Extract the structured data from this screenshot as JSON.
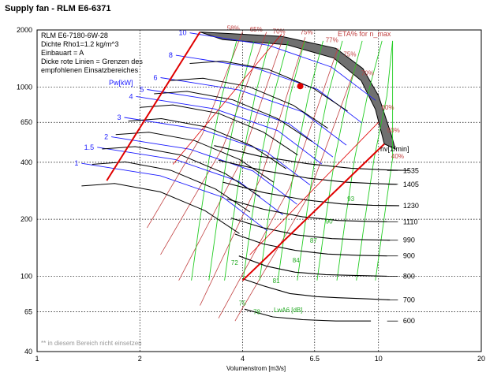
{
  "window": {
    "title": "Supply fan - RLM E6-6371"
  },
  "colors": {
    "fan_curve": "#000000",
    "power_curve": "#1a1aff",
    "efficiency_curve": "#c04040",
    "noise_curve": "#22cc22",
    "limit_line": "#e00000",
    "grid": "#000000",
    "envelope_fill": "#707070",
    "operating_point": "#e00000"
  },
  "chart_data": {
    "type": "line",
    "title": "",
    "xlabel": "Volumenstrom [m3/s]",
    "ylabel": "",
    "x_scale": "log",
    "y_scale": "log",
    "xlim": [
      1,
      20
    ],
    "ylim": [
      40,
      2000
    ],
    "x_ticks": [
      1,
      2,
      4,
      6.5,
      10,
      20
    ],
    "y_ticks": [
      40,
      65,
      100,
      200,
      400,
      650,
      1000,
      2000
    ],
    "grid": true,
    "info_lines": [
      "RLM E6-7180-6W-28",
      "Dichte Rho1=1.2 kg/m^3",
      "Einbauart = A",
      " Dicke rote Linien = Grenzen des",
      " empfohlenen Einsatzbereiches"
    ],
    "footnote": "** in diesem Bereich nicht einsetzen",
    "speed_axis_label": "nv[1/min]",
    "efficiency_axis_label": "ETA% for n_max",
    "power_axis_label": "Pw[kW]",
    "noise_axis_label": "LwA6 [dB]",
    "fan_curves": [
      {
        "rpm": "600",
        "points": [
          [
            4.05,
            67
          ],
          [
            4.9,
            61
          ],
          [
            6.0,
            59
          ],
          [
            7.5,
            58
          ],
          [
            9.5,
            58
          ]
        ]
      },
      {
        "rpm": "700",
        "points": [
          [
            4.0,
            97
          ],
          [
            4.6,
            89
          ],
          [
            5.5,
            81
          ],
          [
            6.6,
            78
          ],
          [
            7.6,
            77
          ],
          [
            9.2,
            76
          ],
          [
            10.8,
            75
          ]
        ]
      },
      {
        "rpm": "800",
        "points": [
          [
            3.9,
            128
          ],
          [
            4.7,
            113
          ],
          [
            5.7,
            105
          ],
          [
            7.0,
            102
          ],
          [
            8.5,
            101
          ],
          [
            10.6,
            100
          ]
        ]
      },
      {
        "rpm": "900",
        "points": [
          [
            3.8,
            167
          ],
          [
            4.6,
            148
          ],
          [
            5.7,
            137
          ],
          [
            7.1,
            131
          ],
          [
            8.7,
            129
          ],
          [
            10.6,
            128
          ]
        ]
      },
      {
        "rpm": "990",
        "points": [
          [
            3.7,
            203
          ],
          [
            4.6,
            180
          ],
          [
            5.8,
            165
          ],
          [
            7.3,
            158
          ],
          [
            9.0,
            156
          ],
          [
            10.8,
            155
          ]
        ]
      },
      {
        "rpm": "1110",
        "points": [
          [
            3.6,
            256
          ],
          [
            4.6,
            226
          ],
          [
            6.0,
            206
          ],
          [
            7.6,
            197
          ],
          [
            9.2,
            195
          ],
          [
            10.6,
            194
          ]
        ]
      },
      {
        "rpm": "1230",
        "points": [
          [
            3.5,
            314
          ],
          [
            4.6,
            277
          ],
          [
            6.1,
            253
          ],
          [
            7.8,
            241
          ],
          [
            9.6,
            237
          ],
          [
            11.5,
            236
          ]
        ]
      },
      {
        "rpm": "1405",
        "points": [
          [
            3.4,
            410
          ],
          [
            4.6,
            362
          ],
          [
            6.2,
            330
          ],
          [
            8.0,
            314
          ],
          [
            10.0,
            308
          ],
          [
            11.3,
            306
          ]
        ]
      },
      {
        "rpm": "1535",
        "points": [
          [
            3.3,
            490
          ],
          [
            4.5,
            430
          ],
          [
            6.2,
            393
          ],
          [
            8.3,
            372
          ],
          [
            10.4,
            365
          ],
          [
            12.3,
            362
          ]
        ]
      }
    ],
    "speed_labels": [
      "1535",
      "1405",
      "1230",
      "1110",
      "990",
      "900",
      "800",
      "700",
      "600"
    ],
    "power_labels": [
      "10",
      "8",
      "6",
      "5",
      "4",
      "3",
      "2",
      "1.5",
      "1"
    ],
    "efficiency_labels": [
      "58%",
      "65%",
      "70%",
      "75%",
      "77%",
      "75%",
      "70%",
      "60%",
      "50%",
      "40%"
    ],
    "noise_labels": [
      "72",
      "75",
      "78",
      "81",
      "84",
      "87",
      "90",
      "93"
    ],
    "operating_point": {
      "x": 5.9,
      "y": 1010
    },
    "limit_lines": [
      {
        "points": [
          [
            1.6,
            320
          ],
          [
            3.0,
            1950
          ]
        ]
      },
      {
        "points": [
          [
            4.0,
            95
          ],
          [
            10.4,
            500
          ]
        ]
      }
    ]
  }
}
